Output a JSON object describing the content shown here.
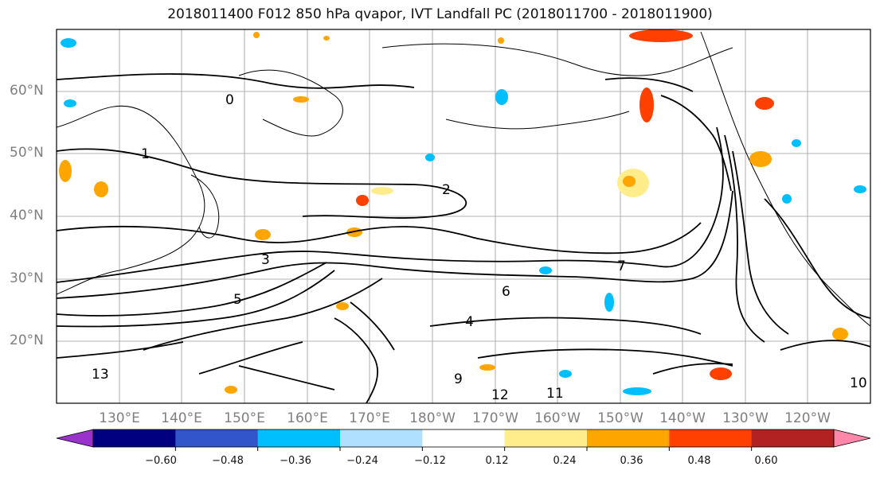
{
  "title": "2018011400 F012 850 hPa qvapor, IVT Landfall PC (2018011700 - 2018011900)",
  "lat_labels": [
    "60°N",
    "50°N",
    "40°N",
    "30°N",
    "20°N"
  ],
  "lon_labels": [
    "130°E",
    "140°E",
    "150°E",
    "160°E",
    "170°E",
    "180°W",
    "170°W",
    "160°W",
    "150°W",
    "140°W",
    "130°W",
    "120°W"
  ],
  "colorbar": {
    "colors": [
      "#9933cc",
      "#000080",
      "#3355cc",
      "#00bfff",
      "#b0e0ff",
      "#ffffff",
      "#ffec8b",
      "#ffa500",
      "#ff4000",
      "#b22222",
      "#ff88aa"
    ],
    "tick_labels": [
      "−0.60",
      "−0.48",
      "−0.36",
      "−0.24",
      "−0.12",
      "0.12",
      "0.24",
      "0.36",
      "0.48",
      "0.60"
    ]
  },
  "contour_labels": [
    "0",
    "1",
    "2",
    "3",
    "4",
    "5",
    "6",
    "7",
    "9",
    "10",
    "11",
    "12",
    "13"
  ]
}
